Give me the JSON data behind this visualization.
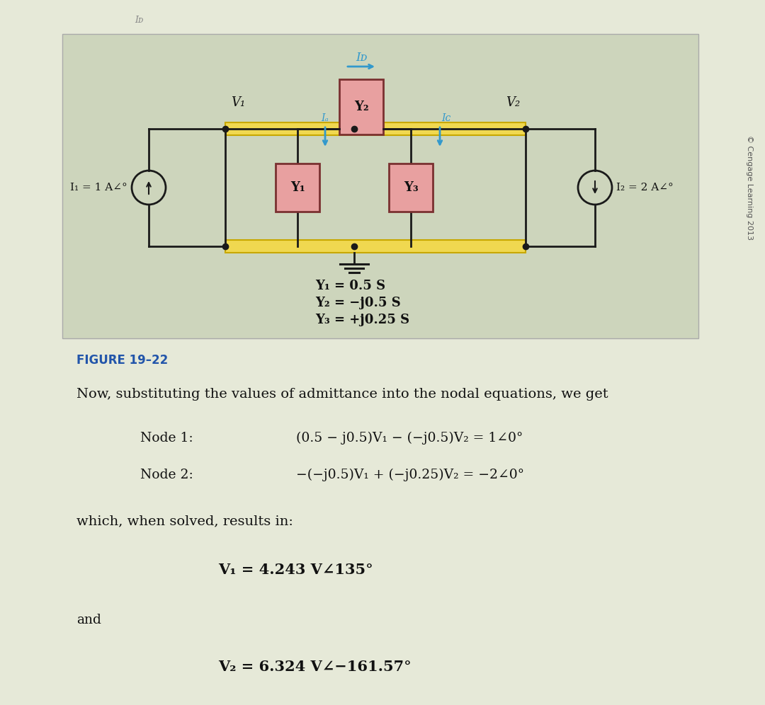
{
  "page_bg": "#e6e9d8",
  "circuit_bg": "#cdd5bc",
  "yellow_color": "#f0d850",
  "yellow_edge": "#c8a800",
  "pink_fc": "#e8a0a0",
  "pink_ec": "#7a3030",
  "wire_color": "#1a1a1a",
  "arrow_color": "#3399cc",
  "text_color": "#1a1a1a",
  "caption_color": "#2255aa",
  "copyright_color": "#555555",
  "Y1_label": "Y₁",
  "Y2_label": "Y₂",
  "Y3_label": "Y₃",
  "IB_label": "Iᴅ",
  "IA_label": "Iₐ",
  "IC_label": "Iᴄ",
  "V1_node_label": "V₁",
  "V2_node_label": "V₂",
  "I1_label": "I₁ = 1 A∠°",
  "I2_label": "I₂ = 2 A∠°",
  "adm1": "Y₁ = 0.5 S",
  "adm2": "Y₂ = −j0.5 S",
  "adm3": "Y₃ = +j0.25 S",
  "fig_caption": "FIGURE 19–22",
  "text_body": "Now, substituting the values of admittance into the nodal equations, we get",
  "node1_label": "Node 1:",
  "node1_eq": "(0.5 − j0.5)V₁ − (−j0.5)V₂ = 1∠0°",
  "node2_label": "Node 2:",
  "node2_eq": "−(−j0.5)V₁ + (−j0.25)V₂ = −2∠0°",
  "solved_text": "which, when solved, results in:",
  "V1_result": "V₁ = 4.243 V∠135°",
  "and_text": "and",
  "V2_result": "V₂ = 6.324 V∠−161.57°",
  "copyright": "© Cengage Learning 2013",
  "top_label": "Iᴅ"
}
